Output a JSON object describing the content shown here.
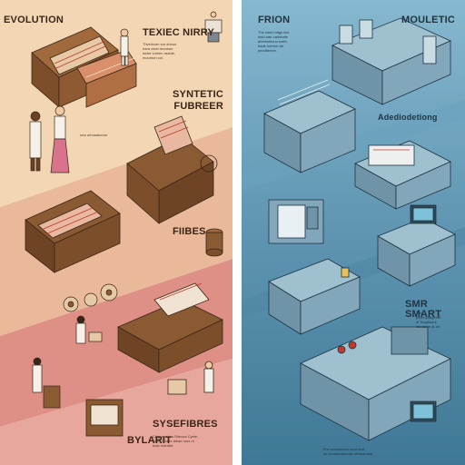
{
  "left_panel": {
    "labels": {
      "evolution": "EVOLUTION",
      "texiec": "TEXIEC NIRRY",
      "syntetic": "SYNTETIC\nFUBREER",
      "fiibes": "FIIBES",
      "byarit": "BYLARIT",
      "sysetfibres": "SYSEFIBRES"
    },
    "captions": {
      "top": "Thvelucan sor ahous\nhara ctaxt reoneao\nlocke vumen raotde,\nmoumon col.",
      "mid": "uea urhusatooror",
      "bottom": "Cleggeer tna Shecoa Cyete,\nwaft, Tacrhe alean roos ot\ntuas rnanttet."
    },
    "colors": {
      "band_top": "#f3d7b4",
      "band_mid": "#e9b99a",
      "band_low": "#de8f86",
      "band_bottom": "#e7a79d"
    }
  },
  "right_panel": {
    "labels": {
      "frion": "FRION",
      "mouletic": "MOULETIC",
      "adediodetiong": "Adediodetiong",
      "smr_smart": "SMR SMART"
    },
    "captions": {
      "top": "The cinel rnitge bur\nbaid aae catirmate\nahedoelioun sutet,\nhade luerton cie\npeodtienee.",
      "mid": "Thn\nplnes ptalgeeet\nof Texptinore\nihe dewe at art",
      "bottom": "Fhe cronomeon aerd and\nde sumaloraomlon efrttoamsta"
    },
    "colors": {
      "bg_top": "#7fb3cb",
      "bg_mid": "#5f95b2",
      "bg_bottom": "#3d7694",
      "machine": "#8fb2c3"
    }
  }
}
